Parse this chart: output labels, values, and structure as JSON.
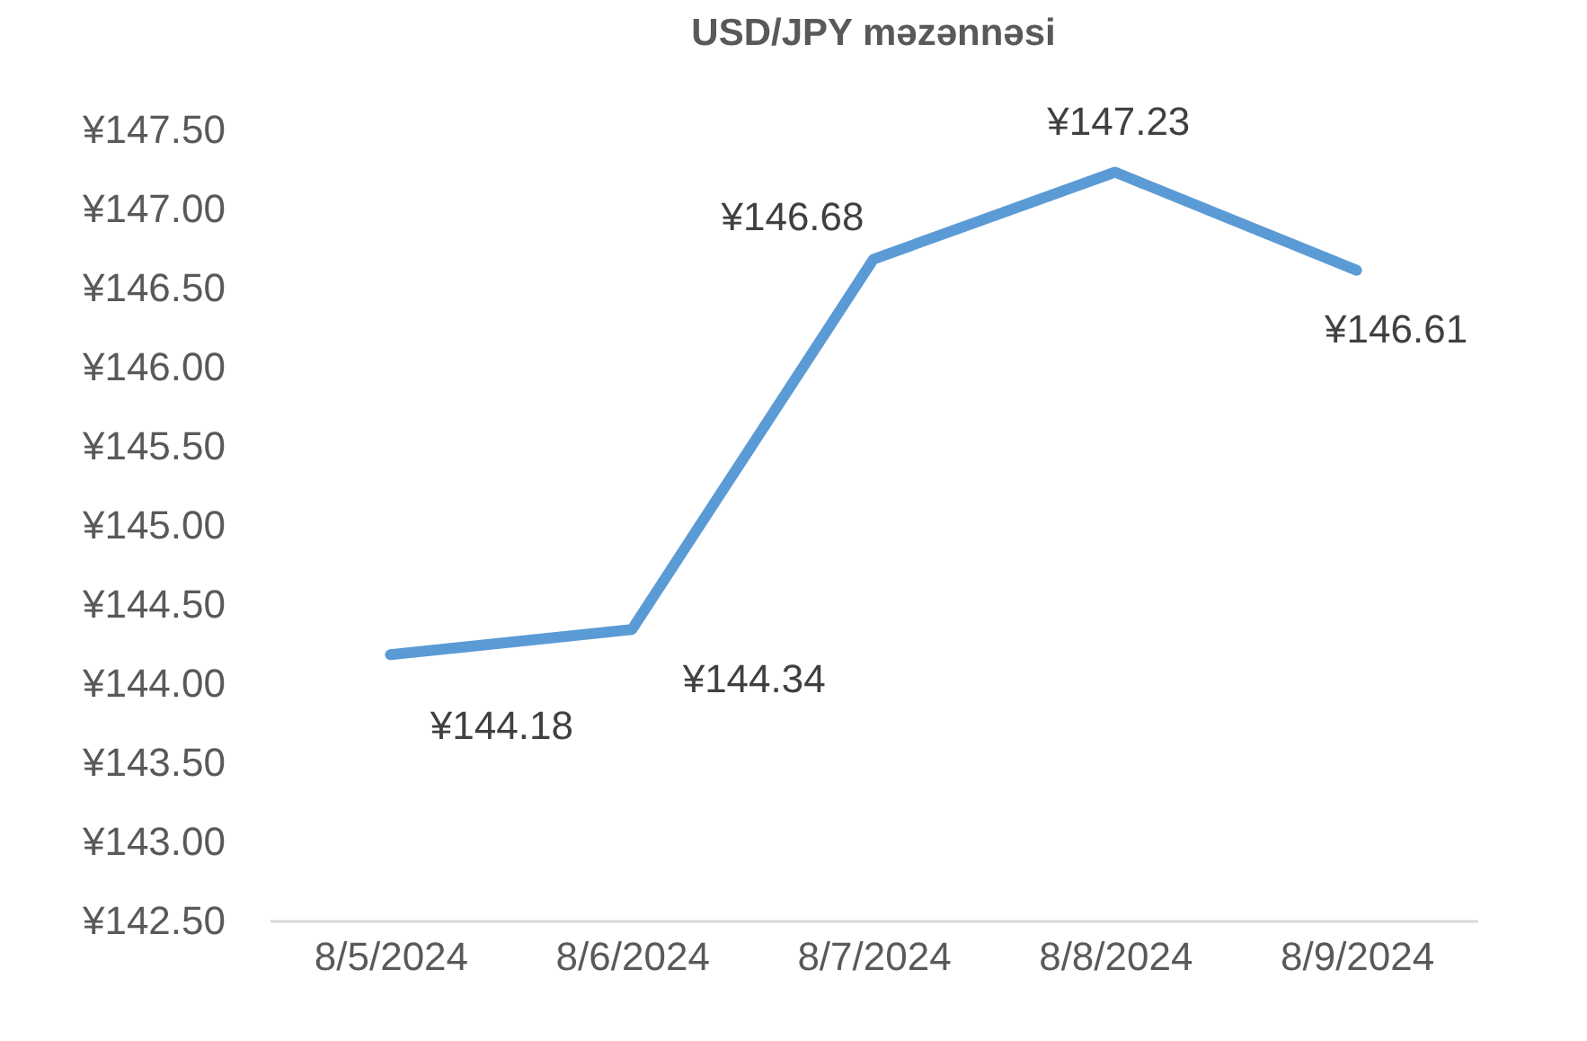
{
  "chart_data": {
    "type": "line",
    "title": "USD/JPY məzənnəsi",
    "categories": [
      "8/5/2024",
      "8/6/2024",
      "8/7/2024",
      "8/8/2024",
      "8/9/2024"
    ],
    "series": [
      {
        "color": "#5b9bd5",
        "values": [
          144.18,
          144.34,
          146.68,
          147.23,
          146.61
        ],
        "value_labels": [
          "¥144.18",
          "¥144.34",
          "¥146.68",
          "¥147.23",
          "¥146.61"
        ]
      }
    ],
    "ylim": [
      142.5,
      147.5
    ],
    "yticks": [
      {
        "value": 142.5,
        "label": "¥142.50"
      },
      {
        "value": 143.0,
        "label": "¥143.00"
      },
      {
        "value": 143.5,
        "label": "¥143.50"
      },
      {
        "value": 144.0,
        "label": "¥144.00"
      },
      {
        "value": 144.5,
        "label": "¥144.50"
      },
      {
        "value": 145.0,
        "label": "¥145.00"
      },
      {
        "value": 145.5,
        "label": "¥145.50"
      },
      {
        "value": 146.0,
        "label": "¥146.00"
      },
      {
        "value": 146.5,
        "label": "¥146.50"
      },
      {
        "value": 147.0,
        "label": "¥147.00"
      },
      {
        "value": 147.5,
        "label": "¥147.50"
      }
    ],
    "grid": false,
    "marker": "none",
    "line_style": "solid"
  }
}
